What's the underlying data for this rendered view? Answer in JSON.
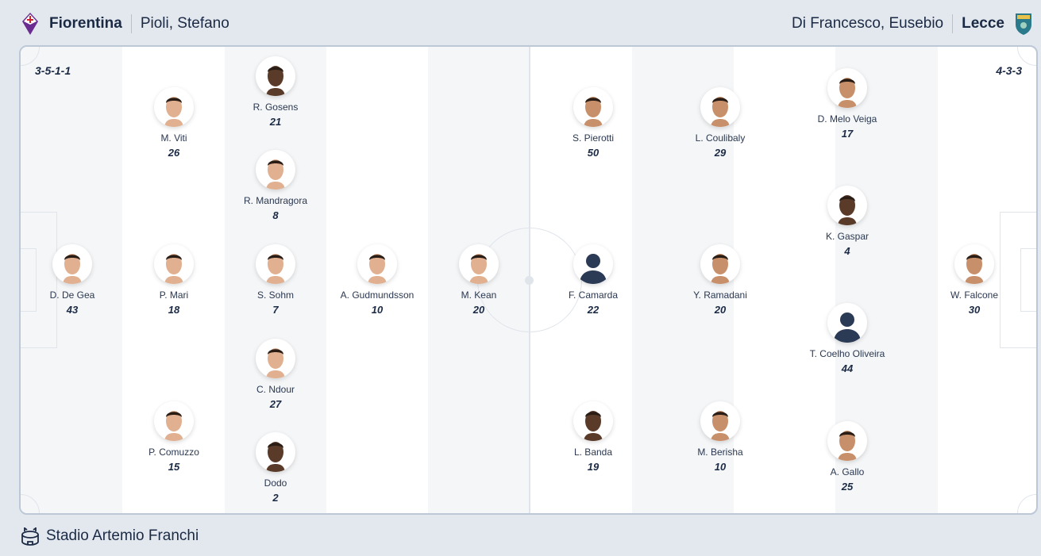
{
  "home": {
    "team": "Fiorentina",
    "coach": "Pioli, Stefano",
    "formation": "3-5-1-1",
    "crest_color": "#6a2c91",
    "players": [
      {
        "name": "D. De Gea",
        "number": "43"
      },
      {
        "name": "M. Viti",
        "number": "26"
      },
      {
        "name": "P. Mari",
        "number": "18"
      },
      {
        "name": "P. Comuzzo",
        "number": "15"
      },
      {
        "name": "R. Gosens",
        "number": "21"
      },
      {
        "name": "R. Mandragora",
        "number": "8"
      },
      {
        "name": "S. Sohm",
        "number": "7"
      },
      {
        "name": "C. Ndour",
        "number": "27"
      },
      {
        "name": "Dodo",
        "number": "2"
      },
      {
        "name": "A. Gudmundsson",
        "number": "10"
      },
      {
        "name": "M. Kean",
        "number": "20"
      }
    ]
  },
  "away": {
    "team": "Lecce",
    "coach": "Di Francesco, Eusebio",
    "formation": "4-3-3",
    "crest_color": "#2a7a8c",
    "players": [
      {
        "name": "F. Camarda",
        "number": "22"
      },
      {
        "name": "S. Pierotti",
        "number": "50"
      },
      {
        "name": "L. Banda",
        "number": "19"
      },
      {
        "name": "L. Coulibaly",
        "number": "29"
      },
      {
        "name": "Y. Ramadani",
        "number": "20"
      },
      {
        "name": "M. Berisha",
        "number": "10"
      },
      {
        "name": "D. Melo Veiga",
        "number": "17"
      },
      {
        "name": "K. Gaspar",
        "number": "4"
      },
      {
        "name": "T. Coelho Oliveira",
        "number": "44"
      },
      {
        "name": "A. Gallo",
        "number": "25"
      },
      {
        "name": "W. Falcone",
        "number": "30"
      }
    ]
  },
  "venue": {
    "name": "Stadio Artemio Franchi",
    "icon": "stadium-icon"
  }
}
